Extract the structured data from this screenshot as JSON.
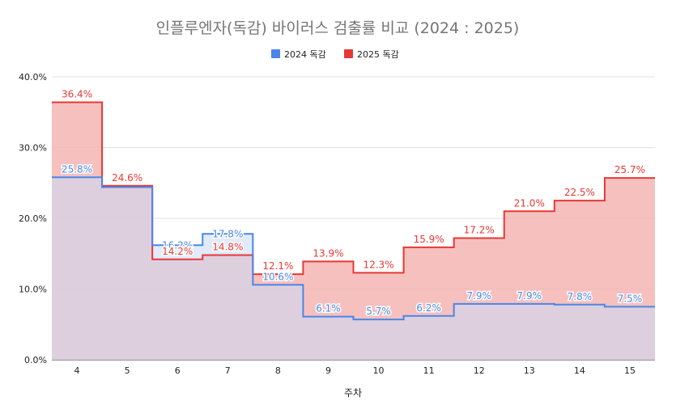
{
  "chart_data": {
    "type": "area",
    "step": true,
    "title": "인플루엔자(독감) 바이러스 검출률 비교 (2024 : 2025)",
    "xlabel": "주차",
    "ylabel": "",
    "categories": [
      "4",
      "5",
      "6",
      "7",
      "8",
      "9",
      "10",
      "11",
      "12",
      "13",
      "14",
      "15"
    ],
    "ylim": [
      0,
      40
    ],
    "yticks": [
      "0.0%",
      "10.0%",
      "20.0%",
      "30.0%",
      "40.0%"
    ],
    "grid": true,
    "legend_position": "top",
    "series": [
      {
        "name": "2024 독감",
        "color": "#4a86e8",
        "fill": "#c9daf8",
        "values": [
          25.8,
          24.4,
          16.2,
          17.8,
          10.6,
          6.1,
          5.7,
          6.2,
          7.9,
          7.9,
          7.8,
          7.5
        ],
        "labels": [
          "25.8%",
          "",
          "16.2%",
          "17.8%",
          "10.6%",
          "6.1%",
          "5.7%",
          "6.2%",
          "7.9%",
          "7.9%",
          "7.8%",
          "7.5%"
        ]
      },
      {
        "name": "2025 독감",
        "color": "#e53935",
        "fill": "#f4b5b3",
        "values": [
          36.4,
          24.6,
          14.2,
          14.8,
          12.1,
          13.9,
          12.3,
          15.9,
          17.2,
          21.0,
          22.5,
          25.7
        ],
        "labels": [
          "36.4%",
          "24.6%",
          "14.2%",
          "14.8%",
          "12.1%",
          "13.9%",
          "12.3%",
          "15.9%",
          "17.2%",
          "21.0%",
          "22.5%",
          "25.7%"
        ]
      }
    ]
  }
}
